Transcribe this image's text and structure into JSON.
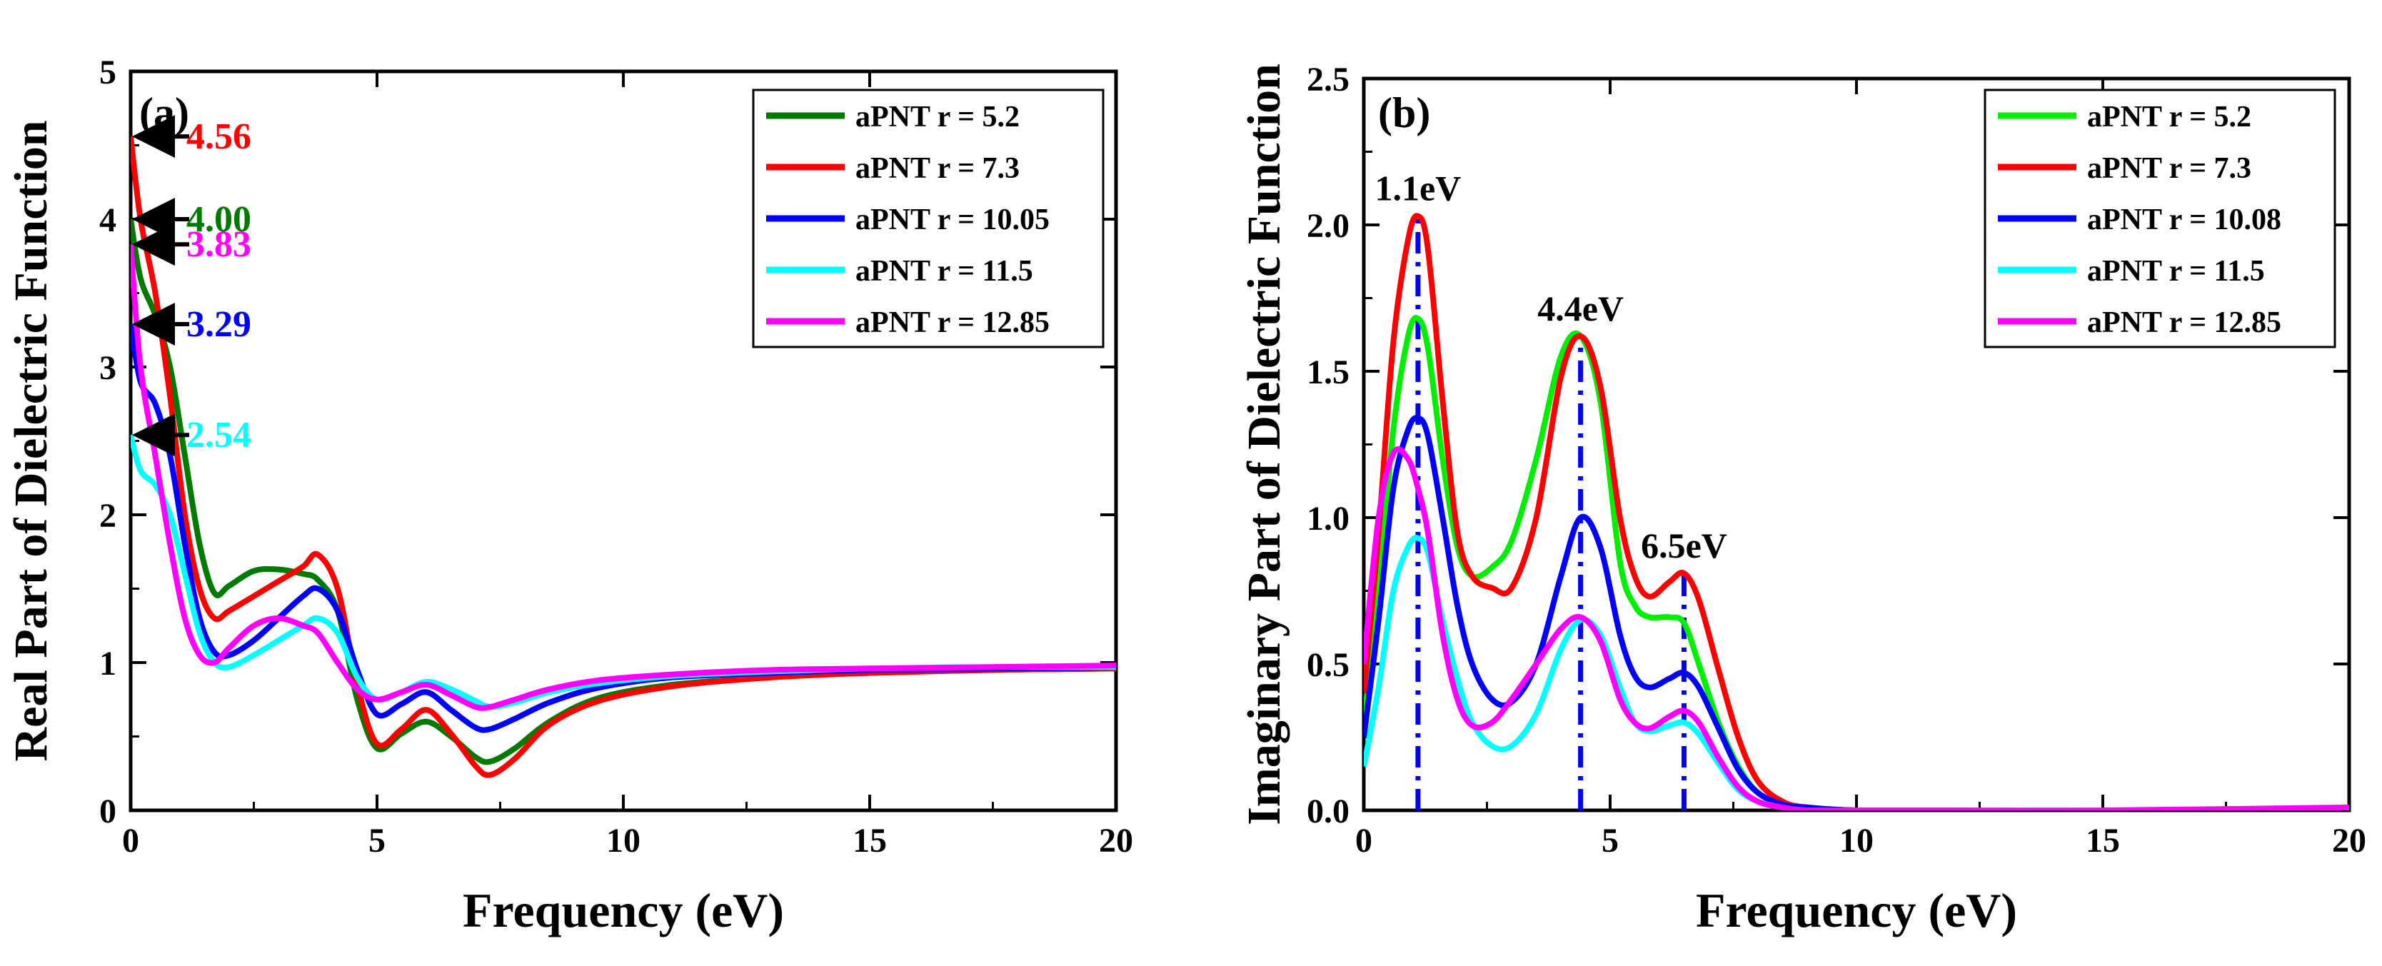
{
  "chart_data": [
    {
      "type": "line",
      "panel_label": "(a)",
      "xlabel": "Frequency (eV)",
      "ylabel": "Real Part of Dielectric Function",
      "xlim": [
        0,
        20
      ],
      "ylim": [
        0,
        5
      ],
      "xticks": [
        0,
        5,
        10,
        15,
        20
      ],
      "yticks": [
        0,
        1,
        2,
        3,
        4,
        5
      ],
      "legend_position": "top-right",
      "series": [
        {
          "name": "aPNT r = 5.2",
          "color": "#007a00",
          "x": [
            0,
            0.2,
            0.5,
            0.8,
            1.1,
            1.4,
            1.7,
            2.0,
            2.5,
            3.0,
            3.5,
            3.8,
            4.2,
            4.6,
            5.0,
            5.5,
            6.0,
            6.5,
            7.0,
            7.3,
            7.8,
            8.5,
            9.5,
            11,
            13,
            15,
            17.5,
            20
          ],
          "y": [
            4.0,
            3.6,
            3.35,
            3.0,
            2.4,
            1.8,
            1.47,
            1.52,
            1.62,
            1.63,
            1.6,
            1.56,
            1.35,
            0.75,
            0.42,
            0.52,
            0.6,
            0.5,
            0.36,
            0.33,
            0.42,
            0.6,
            0.76,
            0.85,
            0.9,
            0.93,
            0.95,
            0.96
          ]
        },
        {
          "name": "aPNT r = 7.3",
          "color": "#ff0000",
          "x": [
            0,
            0.2,
            0.5,
            0.8,
            1.1,
            1.4,
            1.7,
            2.0,
            2.5,
            3.0,
            3.5,
            3.8,
            4.2,
            4.6,
            5.0,
            5.5,
            6.0,
            6.5,
            7.0,
            7.3,
            7.8,
            8.5,
            9.5,
            11,
            13,
            15,
            17.5,
            20
          ],
          "y": [
            4.56,
            4.0,
            3.5,
            2.8,
            2.0,
            1.5,
            1.3,
            1.35,
            1.45,
            1.55,
            1.65,
            1.73,
            1.5,
            0.85,
            0.45,
            0.55,
            0.68,
            0.52,
            0.3,
            0.24,
            0.35,
            0.58,
            0.74,
            0.84,
            0.9,
            0.93,
            0.95,
            0.96
          ]
        },
        {
          "name": "aPNT r = 10.05",
          "color": "#0000ff",
          "x": [
            0,
            0.2,
            0.5,
            0.8,
            1.1,
            1.4,
            1.7,
            2.0,
            2.5,
            3.0,
            3.5,
            3.8,
            4.2,
            4.6,
            5.0,
            5.5,
            6.0,
            6.5,
            7.0,
            7.3,
            7.8,
            8.5,
            9.5,
            11,
            13,
            15,
            17.5,
            20
          ],
          "y": [
            3.29,
            2.9,
            2.75,
            2.4,
            1.8,
            1.3,
            1.07,
            1.05,
            1.15,
            1.3,
            1.45,
            1.5,
            1.35,
            0.95,
            0.65,
            0.72,
            0.8,
            0.68,
            0.56,
            0.55,
            0.62,
            0.73,
            0.83,
            0.9,
            0.93,
            0.95,
            0.96,
            0.97
          ]
        },
        {
          "name": "aPNT r = 11.5",
          "color": "#00ffff",
          "x": [
            0,
            0.2,
            0.5,
            0.8,
            1.1,
            1.4,
            1.7,
            2.0,
            2.5,
            3.0,
            3.5,
            3.8,
            4.2,
            4.6,
            5.0,
            5.5,
            6.0,
            6.5,
            7.0,
            7.3,
            7.8,
            8.5,
            9.5,
            11,
            13,
            15,
            17.5,
            20
          ],
          "y": [
            2.54,
            2.3,
            2.2,
            2.0,
            1.6,
            1.2,
            1.0,
            0.97,
            1.05,
            1.15,
            1.25,
            1.3,
            1.2,
            0.9,
            0.75,
            0.8,
            0.87,
            0.82,
            0.74,
            0.7,
            0.73,
            0.8,
            0.86,
            0.91,
            0.94,
            0.96,
            0.97,
            0.97
          ]
        },
        {
          "name": "aPNT r = 12.85",
          "color": "#ff00ff",
          "x": [
            0,
            0.2,
            0.5,
            0.8,
            1.1,
            1.4,
            1.7,
            2.0,
            2.5,
            3.0,
            3.5,
            3.8,
            4.2,
            4.6,
            5.0,
            5.5,
            6.0,
            6.5,
            7.0,
            7.3,
            7.8,
            8.5,
            9.5,
            11,
            13,
            15,
            17.5,
            20
          ],
          "y": [
            3.83,
            3.0,
            2.4,
            1.8,
            1.3,
            1.05,
            1.0,
            1.1,
            1.25,
            1.3,
            1.25,
            1.2,
            1.0,
            0.82,
            0.75,
            0.8,
            0.85,
            0.78,
            0.7,
            0.7,
            0.75,
            0.82,
            0.88,
            0.92,
            0.95,
            0.96,
            0.97,
            0.98
          ]
        }
      ],
      "annotations": [
        {
          "text": "4.56",
          "value": 4.56,
          "color": "#ff0000"
        },
        {
          "text": "4.00",
          "value": 4.0,
          "color": "#007a00"
        },
        {
          "text": "3.83",
          "value": 3.83,
          "color": "#ff00ff"
        },
        {
          "text": "3.29",
          "value": 3.29,
          "color": "#0000ff"
        },
        {
          "text": "2.54",
          "value": 2.54,
          "color": "#00ffff"
        }
      ]
    },
    {
      "type": "line",
      "panel_label": "(b)",
      "xlabel": "Frequency (eV)",
      "ylabel": "Imaginary  Part of Dielectric Function",
      "xlim": [
        0,
        20
      ],
      "ylim": [
        0,
        2.5
      ],
      "xticks": [
        0,
        5,
        10,
        15,
        20
      ],
      "yticks": [
        0.0,
        0.5,
        1.0,
        1.5,
        2.0,
        2.5
      ],
      "legend_position": "top-right",
      "series": [
        {
          "name": "aPNT r = 5.2",
          "color": "#00ee00",
          "x": [
            0,
            0.3,
            0.6,
            0.9,
            1.1,
            1.3,
            1.6,
            1.9,
            2.2,
            2.6,
            3.0,
            3.5,
            4.0,
            4.4,
            4.8,
            5.2,
            5.5,
            5.8,
            6.2,
            6.5,
            6.8,
            7.2,
            7.6,
            8.0,
            8.5,
            9.0,
            10,
            12,
            15,
            20
          ],
          "y": [
            0.3,
            0.75,
            1.3,
            1.62,
            1.68,
            1.58,
            1.2,
            0.9,
            0.8,
            0.83,
            0.92,
            1.2,
            1.55,
            1.62,
            1.4,
            0.85,
            0.7,
            0.66,
            0.66,
            0.64,
            0.5,
            0.3,
            0.15,
            0.06,
            0.02,
            0.01,
            0.0,
            0.0,
            0.0,
            0.0
          ]
        },
        {
          "name": "aPNT r = 7.3",
          "color": "#ff0000",
          "x": [
            0,
            0.3,
            0.6,
            0.9,
            1.1,
            1.3,
            1.6,
            1.9,
            2.2,
            2.6,
            3.0,
            3.5,
            4.0,
            4.4,
            4.8,
            5.2,
            5.5,
            5.8,
            6.2,
            6.5,
            6.8,
            7.2,
            7.6,
            8.0,
            8.5,
            9.0,
            10,
            12,
            15,
            20
          ],
          "y": [
            0.4,
            0.95,
            1.6,
            1.95,
            2.03,
            1.92,
            1.4,
            0.95,
            0.8,
            0.76,
            0.76,
            1.0,
            1.48,
            1.62,
            1.45,
            1.0,
            0.8,
            0.73,
            0.78,
            0.81,
            0.72,
            0.48,
            0.25,
            0.1,
            0.03,
            0.01,
            0.0,
            0.0,
            0.0,
            0.0
          ]
        },
        {
          "name": "aPNT r = 10.08",
          "color": "#0000ff",
          "x": [
            0,
            0.3,
            0.6,
            0.9,
            1.1,
            1.3,
            1.6,
            1.9,
            2.2,
            2.6,
            3.0,
            3.5,
            4.0,
            4.4,
            4.8,
            5.2,
            5.5,
            5.8,
            6.2,
            6.5,
            6.8,
            7.2,
            7.6,
            8.0,
            8.5,
            9.0,
            10,
            12,
            15,
            20
          ],
          "y": [
            0.25,
            0.65,
            1.1,
            1.3,
            1.34,
            1.28,
            1.0,
            0.7,
            0.5,
            0.38,
            0.37,
            0.5,
            0.8,
            1.0,
            0.9,
            0.6,
            0.46,
            0.42,
            0.45,
            0.47,
            0.42,
            0.28,
            0.14,
            0.06,
            0.02,
            0.01,
            0.0,
            0.0,
            0.0,
            0.0
          ]
        },
        {
          "name": "aPNT r = 11.5",
          "color": "#00ffff",
          "x": [
            0,
            0.3,
            0.6,
            0.9,
            1.1,
            1.3,
            1.6,
            1.9,
            2.2,
            2.6,
            3.0,
            3.5,
            4.0,
            4.4,
            4.8,
            5.2,
            5.5,
            5.8,
            6.2,
            6.5,
            6.8,
            7.2,
            7.6,
            8.0,
            8.5,
            9.0,
            10,
            12,
            15,
            20
          ],
          "y": [
            0.15,
            0.42,
            0.75,
            0.9,
            0.93,
            0.88,
            0.65,
            0.45,
            0.3,
            0.22,
            0.22,
            0.33,
            0.55,
            0.65,
            0.6,
            0.42,
            0.3,
            0.27,
            0.29,
            0.3,
            0.26,
            0.16,
            0.07,
            0.03,
            0.01,
            0.0,
            0.0,
            0.0,
            0.0,
            0.0
          ]
        },
        {
          "name": "aPNT r = 12.85",
          "color": "#ff00ff",
          "x": [
            0,
            0.3,
            0.6,
            0.9,
            1.1,
            1.3,
            1.6,
            1.9,
            2.2,
            2.6,
            3.0,
            3.5,
            4.0,
            4.4,
            4.8,
            5.2,
            5.5,
            5.8,
            6.2,
            6.5,
            6.8,
            7.2,
            7.6,
            8.0,
            8.5,
            9.0,
            10,
            12,
            15,
            20
          ],
          "y": [
            0.5,
            1.0,
            1.22,
            1.2,
            1.1,
            0.95,
            0.6,
            0.38,
            0.29,
            0.3,
            0.38,
            0.5,
            0.62,
            0.66,
            0.58,
            0.38,
            0.3,
            0.28,
            0.32,
            0.34,
            0.3,
            0.18,
            0.08,
            0.03,
            0.01,
            0.0,
            0.0,
            0.0,
            0.0,
            0.01
          ]
        }
      ],
      "peak_markers": [
        {
          "x": 1.1,
          "y": 2.03,
          "label": "1.1eV"
        },
        {
          "x": 4.4,
          "y": 1.62,
          "label": "4.4eV"
        },
        {
          "x": 6.5,
          "y": 0.81,
          "label": "6.5eV"
        }
      ],
      "peak_line_color": "#0000ff"
    }
  ]
}
